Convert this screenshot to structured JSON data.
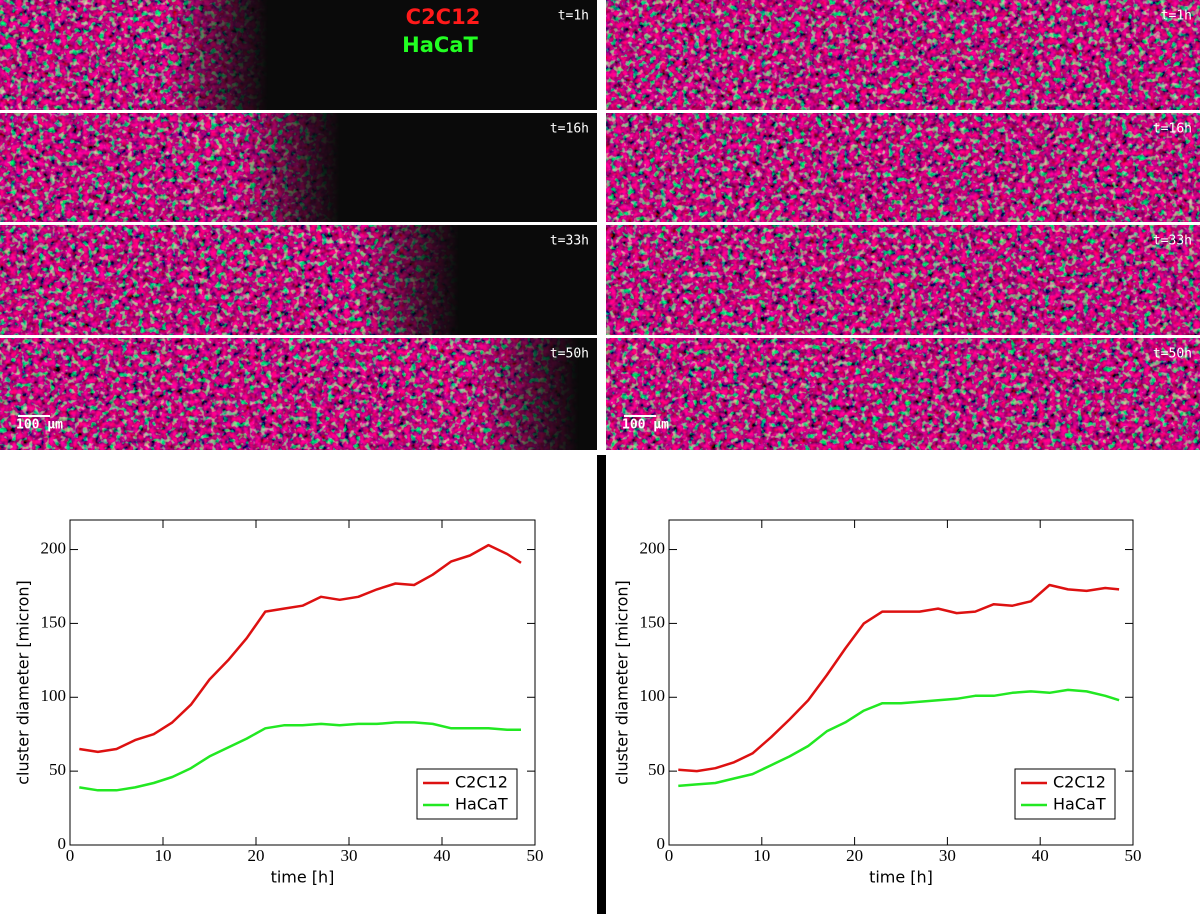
{
  "micrographs": {
    "legend": [
      "C2C12",
      "HaCaT"
    ],
    "left": {
      "time_labels": [
        "t=1h",
        "t=16h",
        "t=33h",
        "t=50h"
      ],
      "scale_bar": "100 µm"
    },
    "right": {
      "time_labels": [
        "t=1h",
        "t=16h",
        "t=33h",
        "t=50h"
      ],
      "scale_bar": "100 µm"
    }
  },
  "chart_data": [
    {
      "type": "line",
      "x_label": "time [h]",
      "y_label": "cluster diameter [micron]",
      "x": [
        1,
        3,
        5,
        7,
        9,
        11,
        13,
        15,
        17,
        19,
        21,
        23,
        25,
        27,
        29,
        31,
        33,
        35,
        37,
        39,
        41,
        43,
        45,
        47,
        48.5
      ],
      "series": [
        {
          "name": "C2C12",
          "color": "#dd1111",
          "values": [
            65,
            63,
            65,
            71,
            75,
            83,
            95,
            112,
            125,
            140,
            158,
            160,
            162,
            168,
            166,
            168,
            173,
            177,
            176,
            183,
            192,
            196,
            203,
            197,
            191
          ]
        },
        {
          "name": "HaCaT",
          "color": "#22e822",
          "values": [
            39,
            37,
            37,
            39,
            42,
            46,
            52,
            60,
            66,
            72,
            79,
            81,
            81,
            82,
            81,
            82,
            82,
            83,
            83,
            82,
            79,
            79,
            79,
            78,
            78
          ]
        }
      ],
      "xlim": [
        0,
        50
      ],
      "xticks": [
        0,
        10,
        20,
        30,
        40,
        50
      ],
      "ylim": [
        0,
        220
      ],
      "yticks": [
        0,
        50,
        100,
        150,
        200
      ],
      "legend": "lower right"
    },
    {
      "type": "line",
      "x_label": "time [h]",
      "y_label": "cluster diameter [micron]",
      "x": [
        1,
        3,
        5,
        7,
        9,
        11,
        13,
        15,
        17,
        19,
        21,
        23,
        25,
        27,
        29,
        31,
        33,
        35,
        37,
        39,
        41,
        43,
        45,
        47,
        48.5
      ],
      "series": [
        {
          "name": "C2C12",
          "color": "#dd1111",
          "values": [
            51,
            50,
            52,
            56,
            62,
            73,
            85,
            98,
            115,
            133,
            150,
            158,
            158,
            158,
            160,
            157,
            158,
            163,
            162,
            165,
            176,
            173,
            172,
            174,
            173
          ]
        },
        {
          "name": "HaCaT",
          "color": "#22e822",
          "values": [
            40,
            41,
            42,
            45,
            48,
            54,
            60,
            67,
            77,
            83,
            91,
            96,
            96,
            97,
            98,
            99,
            101,
            101,
            103,
            104,
            103,
            105,
            104,
            101,
            98
          ]
        }
      ],
      "xlim": [
        0,
        50
      ],
      "xticks": [
        0,
        10,
        20,
        30,
        40,
        50
      ],
      "ylim": [
        0,
        220
      ],
      "yticks": [
        0,
        50,
        100,
        150,
        200
      ],
      "legend": "lower right"
    }
  ]
}
